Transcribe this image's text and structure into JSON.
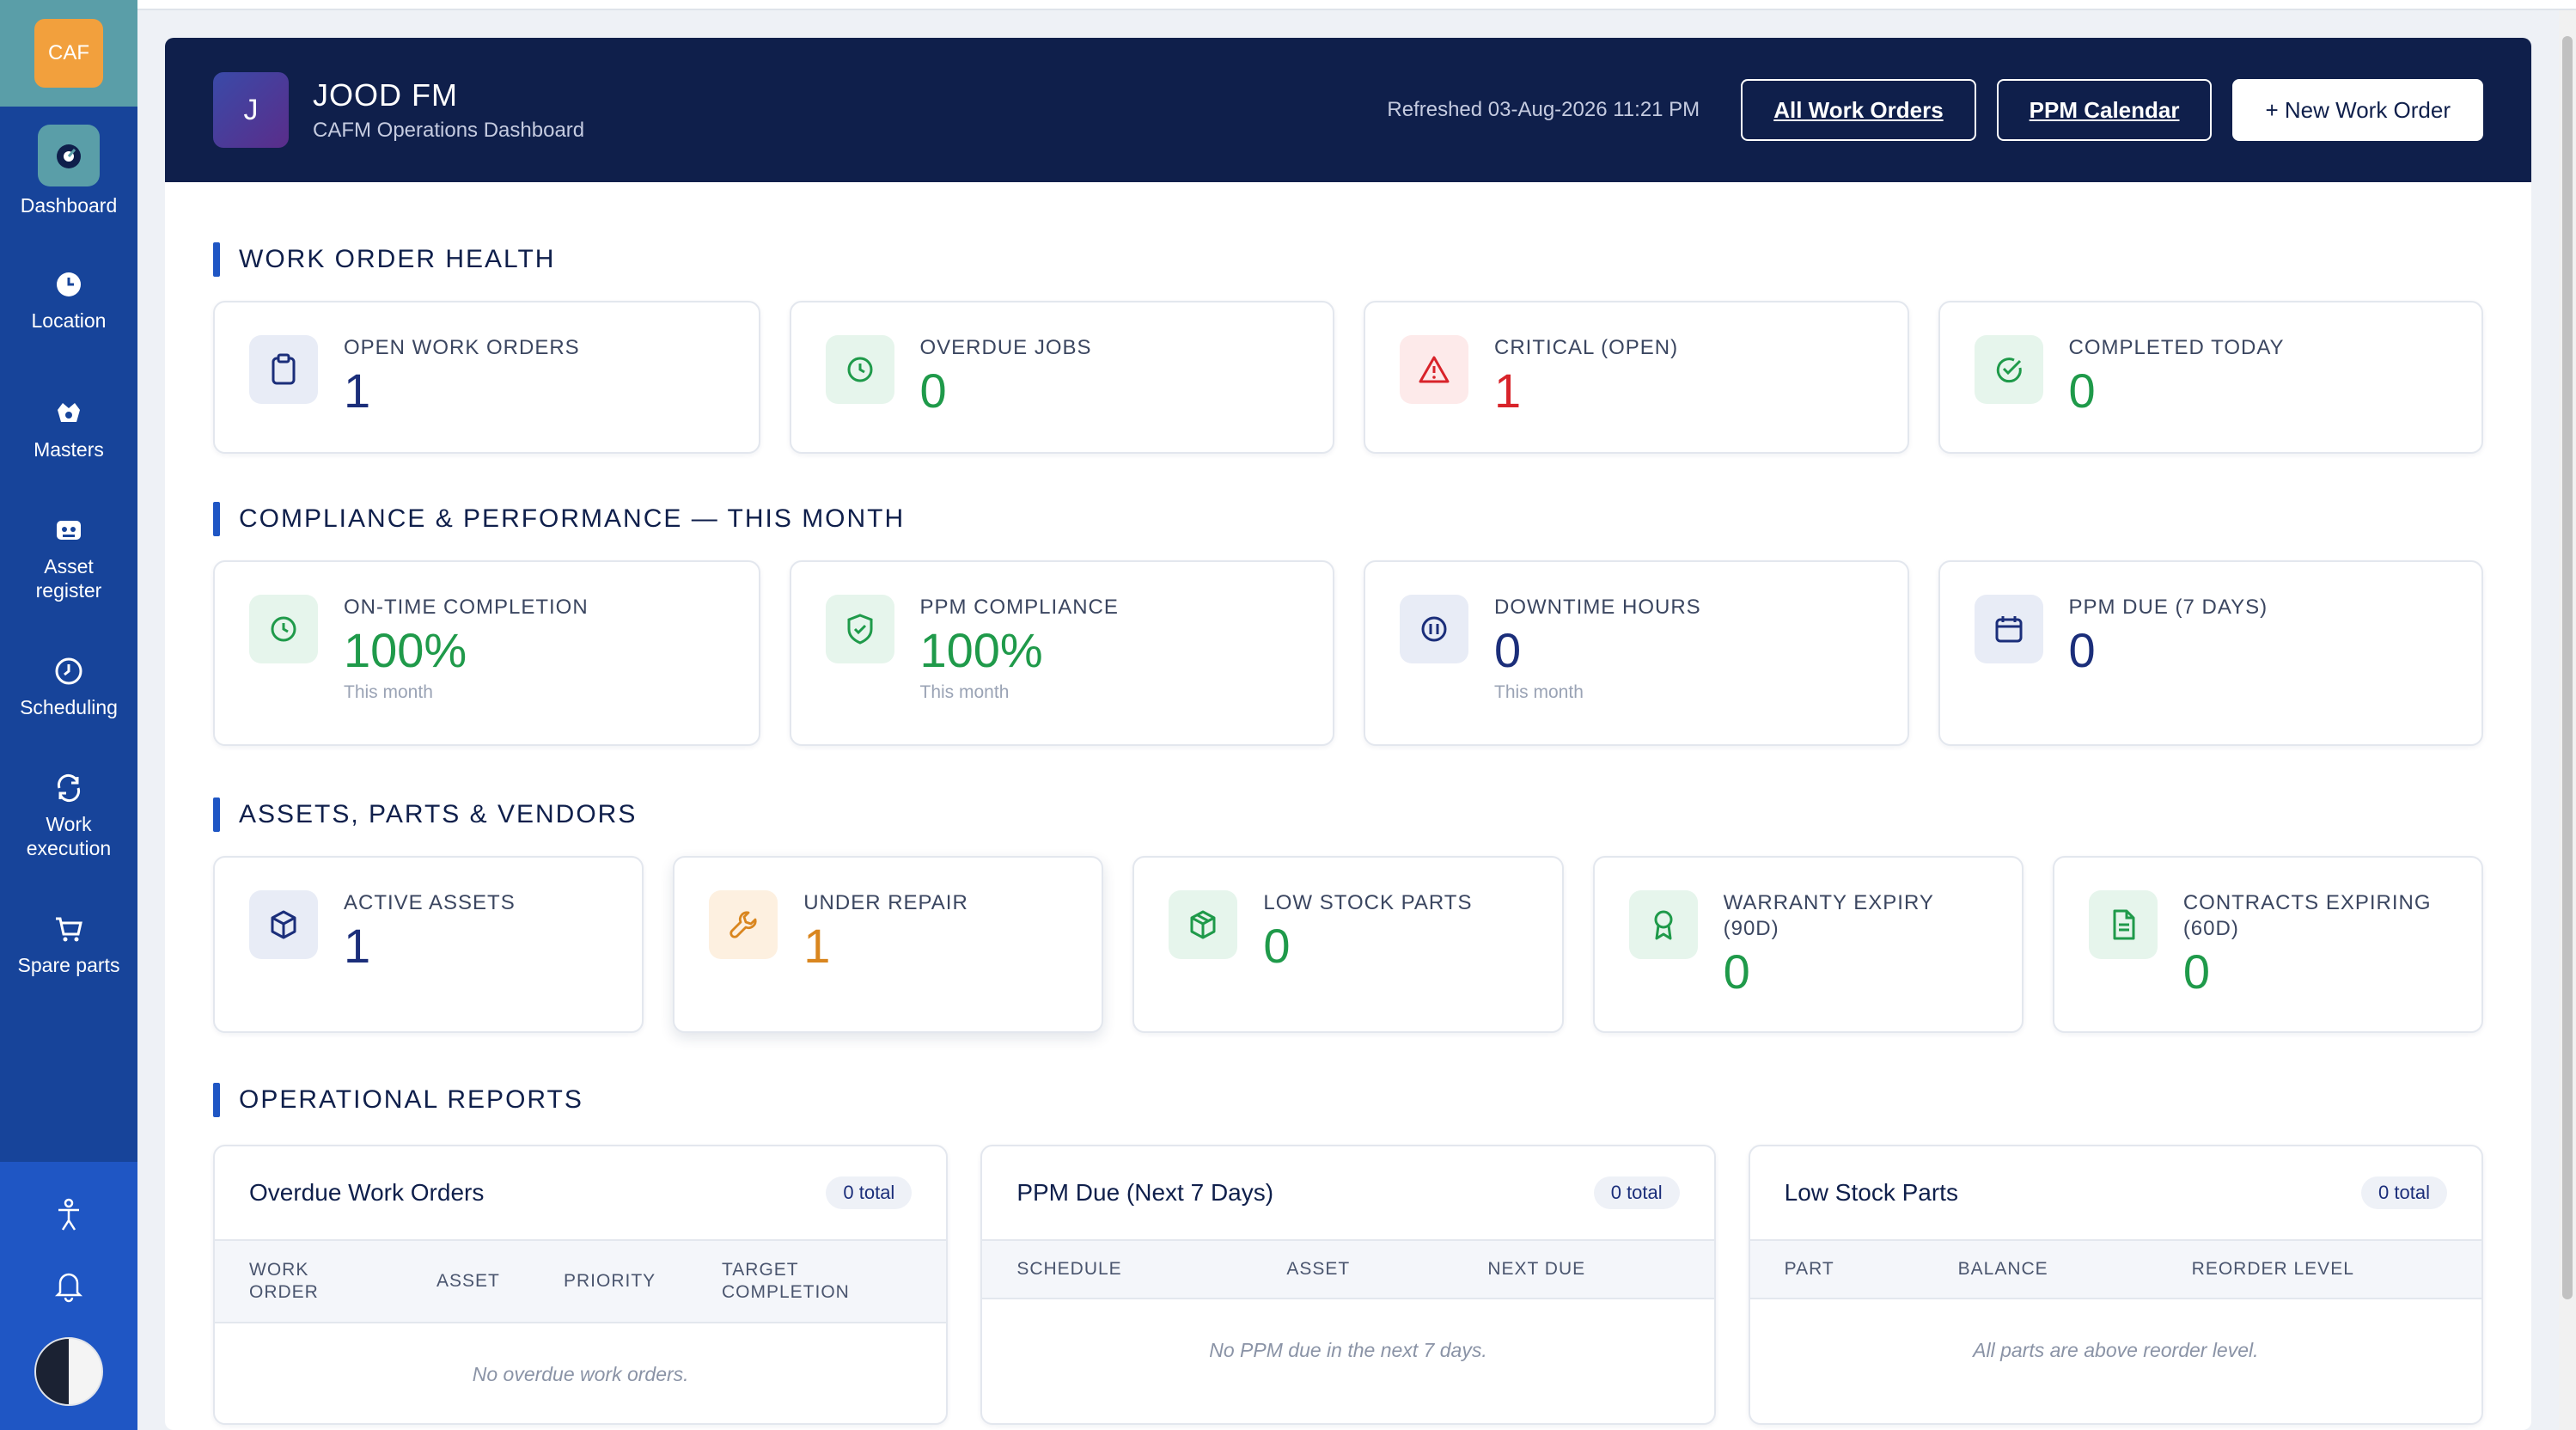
{
  "sidebar": {
    "logo_text": "CAF",
    "items": [
      {
        "label": "Dashboard",
        "icon": "dashboard-icon"
      },
      {
        "label": "Location",
        "icon": "location-icon"
      },
      {
        "label": "Masters",
        "icon": "masters-icon"
      },
      {
        "label": "Asset register",
        "icon": "asset-register-icon"
      },
      {
        "label": "Scheduling",
        "icon": "scheduling-icon"
      },
      {
        "label": "Work execution",
        "icon": "work-execution-icon"
      },
      {
        "label": "Spare parts",
        "icon": "spare-parts-icon"
      }
    ],
    "bottom_icons": [
      "accessibility-icon",
      "bell-icon",
      "avatar"
    ]
  },
  "header": {
    "badge": "J",
    "title": "JOOD FM",
    "subtitle": "CAFM Operations Dashboard",
    "refreshed": "Refreshed 03-Aug-2026 11:21 PM",
    "buttons": {
      "all_work_orders": "All Work Orders",
      "ppm_calendar": "PPM Calendar",
      "new_work_order": "+ New Work Order"
    }
  },
  "sections": {
    "health": {
      "title": "WORK ORDER HEALTH",
      "cards": [
        {
          "label": "OPEN WORK ORDERS",
          "value": "1",
          "icon": "clipboard-icon",
          "color": "#1b2e7a"
        },
        {
          "label": "OVERDUE JOBS",
          "value": "0",
          "icon": "clock-icon",
          "color": "#1f9a4a"
        },
        {
          "label": "CRITICAL (OPEN)",
          "value": "1",
          "icon": "warning-icon",
          "color": "#d8232a"
        },
        {
          "label": "COMPLETED TODAY",
          "value": "0",
          "icon": "check-circle-icon",
          "color": "#1f9a4a"
        }
      ]
    },
    "compliance": {
      "title": "COMPLIANCE & PERFORMANCE — THIS MONTH",
      "cards": [
        {
          "label": "ON-TIME COMPLETION",
          "value": "100%",
          "sub": "This month",
          "icon": "clock-icon",
          "color": "#1f9a4a"
        },
        {
          "label": "PPM COMPLIANCE",
          "value": "100%",
          "sub": "This month",
          "icon": "shield-check-icon",
          "color": "#1f9a4a"
        },
        {
          "label": "DOWNTIME HOURS",
          "value": "0",
          "sub": "This month",
          "icon": "pause-icon",
          "color": "#1b2e7a"
        },
        {
          "label": "PPM DUE (7 DAYS)",
          "value": "0",
          "icon": "calendar-icon",
          "color": "#1b2e7a"
        }
      ]
    },
    "assets": {
      "title": "ASSETS, PARTS & VENDORS",
      "cards": [
        {
          "label": "ACTIVE ASSETS",
          "value": "1",
          "icon": "cube-icon",
          "color": "#1b2e7a"
        },
        {
          "label": "UNDER REPAIR",
          "value": "1",
          "icon": "wrench-icon",
          "color": "#d9861f"
        },
        {
          "label": "LOW STOCK PARTS",
          "value": "0",
          "icon": "box-icon",
          "color": "#1f9a4a"
        },
        {
          "label": "WARRANTY EXPIRY (90D)",
          "value": "0",
          "icon": "award-icon",
          "color": "#1f9a4a"
        },
        {
          "label": "CONTRACTS EXPIRING (60D)",
          "value": "0",
          "icon": "document-icon",
          "color": "#1f9a4a"
        }
      ]
    },
    "reports": {
      "title": "OPERATIONAL REPORTS",
      "panels": [
        {
          "title": "Overdue Work Orders",
          "total": "0 total",
          "columns": [
            "WORK ORDER",
            "ASSET",
            "PRIORITY",
            "TARGET COMPLETION"
          ],
          "empty": "No overdue work orders."
        },
        {
          "title": "PPM Due (Next 7 Days)",
          "total": "0 total",
          "columns": [
            "SCHEDULE",
            "ASSET",
            "NEXT DUE"
          ],
          "empty": "No PPM due in the next 7 days."
        },
        {
          "title": "Low Stock Parts",
          "total": "0 total",
          "columns": [
            "PART",
            "BALANCE",
            "REORDER LEVEL"
          ],
          "empty": "All parts are above reorder level."
        }
      ]
    }
  }
}
